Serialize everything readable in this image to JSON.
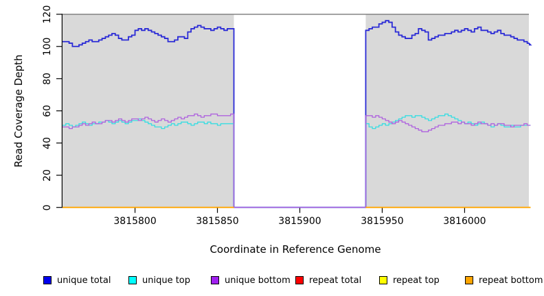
{
  "figure": {
    "background": "#ffffff",
    "plot_background": "#d9d9d9",
    "top_border_color": "#8c8c8c",
    "axis_color": "#000000"
  },
  "chart_data": {
    "type": "line",
    "line_style": "step",
    "title": "",
    "xlabel": "Coordinate in Reference Genome",
    "ylabel": "Read Coverage Depth",
    "xlim": [
      3815756,
      3816039
    ],
    "ylim": [
      0,
      120
    ],
    "x_ticks": [
      3815800,
      3815850,
      3815900,
      3815950,
      3816000
    ],
    "y_ticks": [
      0,
      20,
      40,
      60,
      80,
      100,
      120
    ],
    "grid": false,
    "legend_position": "bottom-horizontal",
    "coverage_gap": {
      "start": 3815860,
      "end": 3815940
    },
    "x_start": 3815756,
    "x_step": 2,
    "series": [
      {
        "name": "unique total",
        "color": "#2a2ad6",
        "legend_color": "#0000ee",
        "width": 1.8,
        "skip_gap": false,
        "values": [
          103,
          103,
          102,
          100,
          100,
          101,
          102,
          103,
          104,
          103,
          103,
          104,
          105,
          106,
          107,
          108,
          107,
          105,
          104,
          104,
          106,
          107,
          110,
          111,
          110,
          111,
          110,
          109,
          108,
          107,
          106,
          105,
          103,
          103,
          104,
          106,
          106,
          105,
          109,
          111,
          112,
          113,
          112,
          111,
          111,
          110,
          111,
          112,
          111,
          110,
          111,
          111,
          0,
          0,
          0,
          0,
          0,
          0,
          0,
          0,
          0,
          0,
          0,
          0,
          0,
          0,
          0,
          0,
          0,
          0,
          0,
          0,
          0,
          0,
          0,
          0,
          0,
          0,
          0,
          0,
          0,
          0,
          0,
          0,
          0,
          0,
          0,
          0,
          0,
          0,
          0,
          0,
          110,
          111,
          112,
          112,
          114,
          115,
          116,
          115,
          112,
          109,
          107,
          106,
          105,
          105,
          107,
          108,
          111,
          110,
          109,
          104,
          105,
          106,
          107,
          107,
          108,
          108,
          109,
          110,
          109,
          110,
          111,
          110,
          109,
          111,
          112,
          110,
          110,
          109,
          108,
          109,
          110,
          108,
          107,
          107,
          106,
          105,
          104,
          104,
          103,
          102,
          101
        ]
      },
      {
        "name": "unique top",
        "color": "#35dde2",
        "legend_color": "#00ffff",
        "width": 1.3,
        "skip_gap": false,
        "values": [
          51,
          52,
          51,
          50,
          51,
          52,
          53,
          52,
          51,
          52,
          52,
          53,
          53,
          54,
          53,
          52,
          53,
          54,
          53,
          52,
          53,
          54,
          54,
          55,
          54,
          53,
          52,
          51,
          50,
          50,
          49,
          50,
          51,
          52,
          51,
          52,
          53,
          53,
          52,
          51,
          52,
          53,
          53,
          52,
          53,
          52,
          52,
          51,
          52,
          52,
          52,
          52,
          0,
          0,
          0,
          0,
          0,
          0,
          0,
          0,
          0,
          0,
          0,
          0,
          0,
          0,
          0,
          0,
          0,
          0,
          0,
          0,
          0,
          0,
          0,
          0,
          0,
          0,
          0,
          0,
          0,
          0,
          0,
          0,
          0,
          0,
          0,
          0,
          0,
          0,
          0,
          0,
          52,
          50,
          49,
          50,
          51,
          52,
          51,
          52,
          53,
          54,
          55,
          56,
          57,
          57,
          56,
          57,
          57,
          56,
          55,
          54,
          55,
          56,
          57,
          57,
          58,
          57,
          56,
          55,
          54,
          53,
          52,
          53,
          52,
          51,
          52,
          53,
          52,
          51,
          50,
          51,
          52,
          51,
          50,
          50,
          51,
          50,
          50,
          51,
          51,
          51,
          51
        ]
      },
      {
        "name": "unique bottom",
        "color": "#ae62de",
        "legend_color": "#a020f0",
        "width": 1.3,
        "skip_gap": false,
        "values": [
          50,
          50,
          49,
          50,
          50,
          51,
          52,
          51,
          52,
          53,
          52,
          52,
          53,
          54,
          54,
          53,
          54,
          55,
          54,
          53,
          54,
          55,
          55,
          54,
          55,
          56,
          55,
          54,
          53,
          54,
          55,
          54,
          53,
          54,
          55,
          56,
          55,
          56,
          57,
          57,
          58,
          57,
          56,
          57,
          57,
          58,
          58,
          57,
          57,
          57,
          57,
          58,
          0,
          0,
          0,
          0,
          0,
          0,
          0,
          0,
          0,
          0,
          0,
          0,
          0,
          0,
          0,
          0,
          0,
          0,
          0,
          0,
          0,
          0,
          0,
          0,
          0,
          0,
          0,
          0,
          0,
          0,
          0,
          0,
          0,
          0,
          0,
          0,
          0,
          0,
          0,
          0,
          57,
          57,
          56,
          57,
          56,
          55,
          54,
          53,
          52,
          53,
          54,
          53,
          52,
          51,
          50,
          49,
          48,
          47,
          47,
          48,
          49,
          50,
          51,
          51,
          52,
          52,
          53,
          53,
          52,
          53,
          52,
          52,
          51,
          52,
          53,
          52,
          52,
          51,
          52,
          51,
          52,
          52,
          51,
          51,
          50,
          51,
          51,
          51,
          52,
          51,
          51
        ]
      },
      {
        "name": "repeat total",
        "color": "#dd0000",
        "legend_color": "#ff0000",
        "width": 1.3,
        "skip_gap": true,
        "constant_value": 0
      },
      {
        "name": "repeat top",
        "color": "#ffff00",
        "legend_color": "#ffff00",
        "width": 1.3,
        "skip_gap": true,
        "constant_value": 0
      },
      {
        "name": "repeat bottom",
        "color": "#ffa500",
        "legend_color": "#ffa500",
        "width": 1.8,
        "skip_gap": true,
        "constant_value": 0
      }
    ],
    "legend_item_x": [
      63,
      187,
      307,
      430,
      552,
      677
    ]
  }
}
